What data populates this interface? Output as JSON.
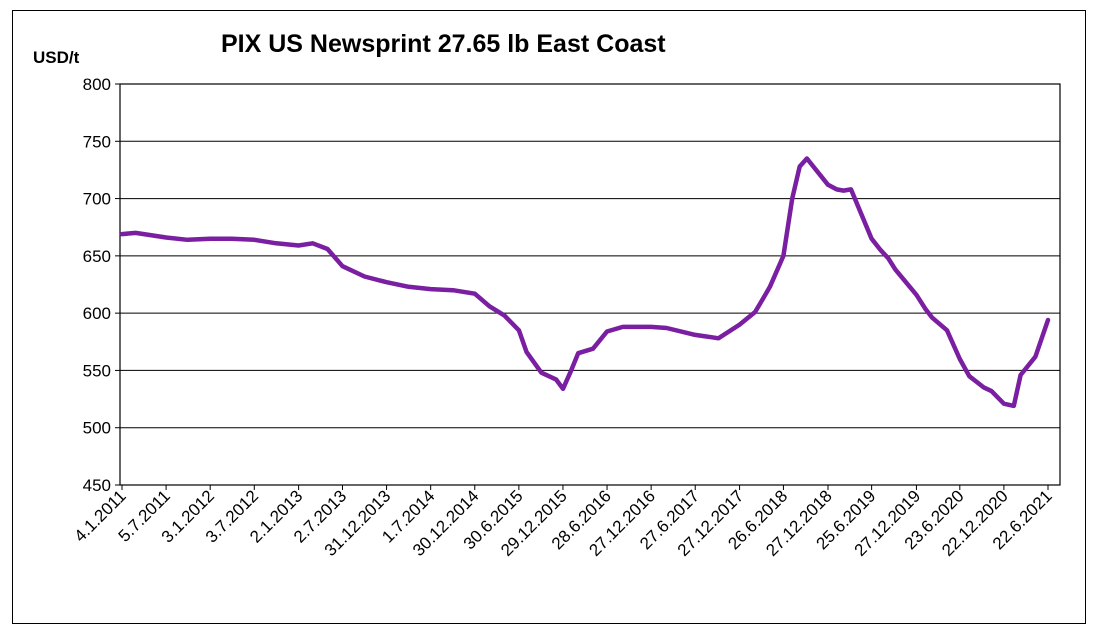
{
  "chart_data": {
    "type": "line",
    "title": "PIX US Newsprint 27.65 lb East Coast",
    "ylabel": "USD/t",
    "xlabel": "",
    "ylim": [
      450,
      800
    ],
    "yticks": [
      450,
      500,
      550,
      600,
      650,
      700,
      750,
      800
    ],
    "xticks": [
      "4.1.2011",
      "5.7.2011",
      "3.1.2012",
      "3.7.2012",
      "2.1.2013",
      "2.7.2013",
      "31.12.2013",
      "1.7.2014",
      "30.12.2014",
      "30.6.2015",
      "29.12.2015",
      "28.6.2016",
      "27.12.2016",
      "27.6.2017",
      "27.12.2017",
      "26.6.2018",
      "27.12.2018",
      "25.6.2019",
      "27.12.2019",
      "23.6.2020",
      "22.12.2020",
      "22.6.2021"
    ],
    "grid": "horizontal",
    "legend": "none",
    "series_color": "#7a1fa2",
    "series": [
      {
        "x": [
          "4.1.2011",
          "1.3.2011",
          "5.7.2011",
          "1.10.2011",
          "3.1.2012",
          "1.4.2012",
          "3.7.2012",
          "1.10.2012",
          "2.1.2013",
          "1.3.2013",
          "1.5.2013",
          "2.7.2013",
          "1.10.2013",
          "31.12.2013",
          "1.4.2014",
          "1.7.2014",
          "1.10.2014",
          "30.12.2014",
          "1.3.2015",
          "1.5.2015",
          "30.6.2015",
          "1.8.2015",
          "1.10.2015",
          "1.12.2015",
          "29.12.2015",
          "1.2.2016",
          "1.3.2016",
          "1.5.2016",
          "28.6.2016",
          "1.9.2016",
          "27.12.2016",
          "1.3.2017",
          "27.6.2017",
          "1.8.2017",
          "1.9.2017",
          "1.10.2017",
          "27.12.2017",
          "1.3.2018",
          "1.4.2018",
          "1.5.2018",
          "26.6.2018",
          "1.8.2018",
          "1.9.2018",
          "1.10.2018",
          "27.12.2018",
          "1.2.2019",
          "1.3.2019",
          "1.4.2019",
          "25.6.2019",
          "1.8.2019",
          "1.9.2019",
          "1.10.2019",
          "27.12.2019",
          "1.2.2020",
          "1.3.2020",
          "1.5.2020",
          "23.6.2020",
          "1.8.2020",
          "1.10.2020",
          "1.11.2020",
          "22.12.2020",
          "1.2.2021",
          "1.3.2021",
          "1.5.2021",
          "22.6.2021"
        ],
        "values": [
          669,
          670,
          666,
          664,
          665,
          665,
          664,
          661,
          659,
          661,
          656,
          641,
          632,
          627,
          623,
          621,
          620,
          617,
          606,
          598,
          585,
          566,
          548,
          542,
          534,
          550,
          565,
          569,
          584,
          588,
          588,
          587,
          581,
          580,
          579,
          578,
          590,
          601,
          612,
          623,
          650,
          700,
          728,
          735,
          712,
          708,
          707,
          708,
          665,
          655,
          648,
          638,
          616,
          604,
          596,
          585,
          560,
          545,
          535,
          532,
          521,
          519,
          546,
          562,
          594
        ]
      }
    ]
  }
}
